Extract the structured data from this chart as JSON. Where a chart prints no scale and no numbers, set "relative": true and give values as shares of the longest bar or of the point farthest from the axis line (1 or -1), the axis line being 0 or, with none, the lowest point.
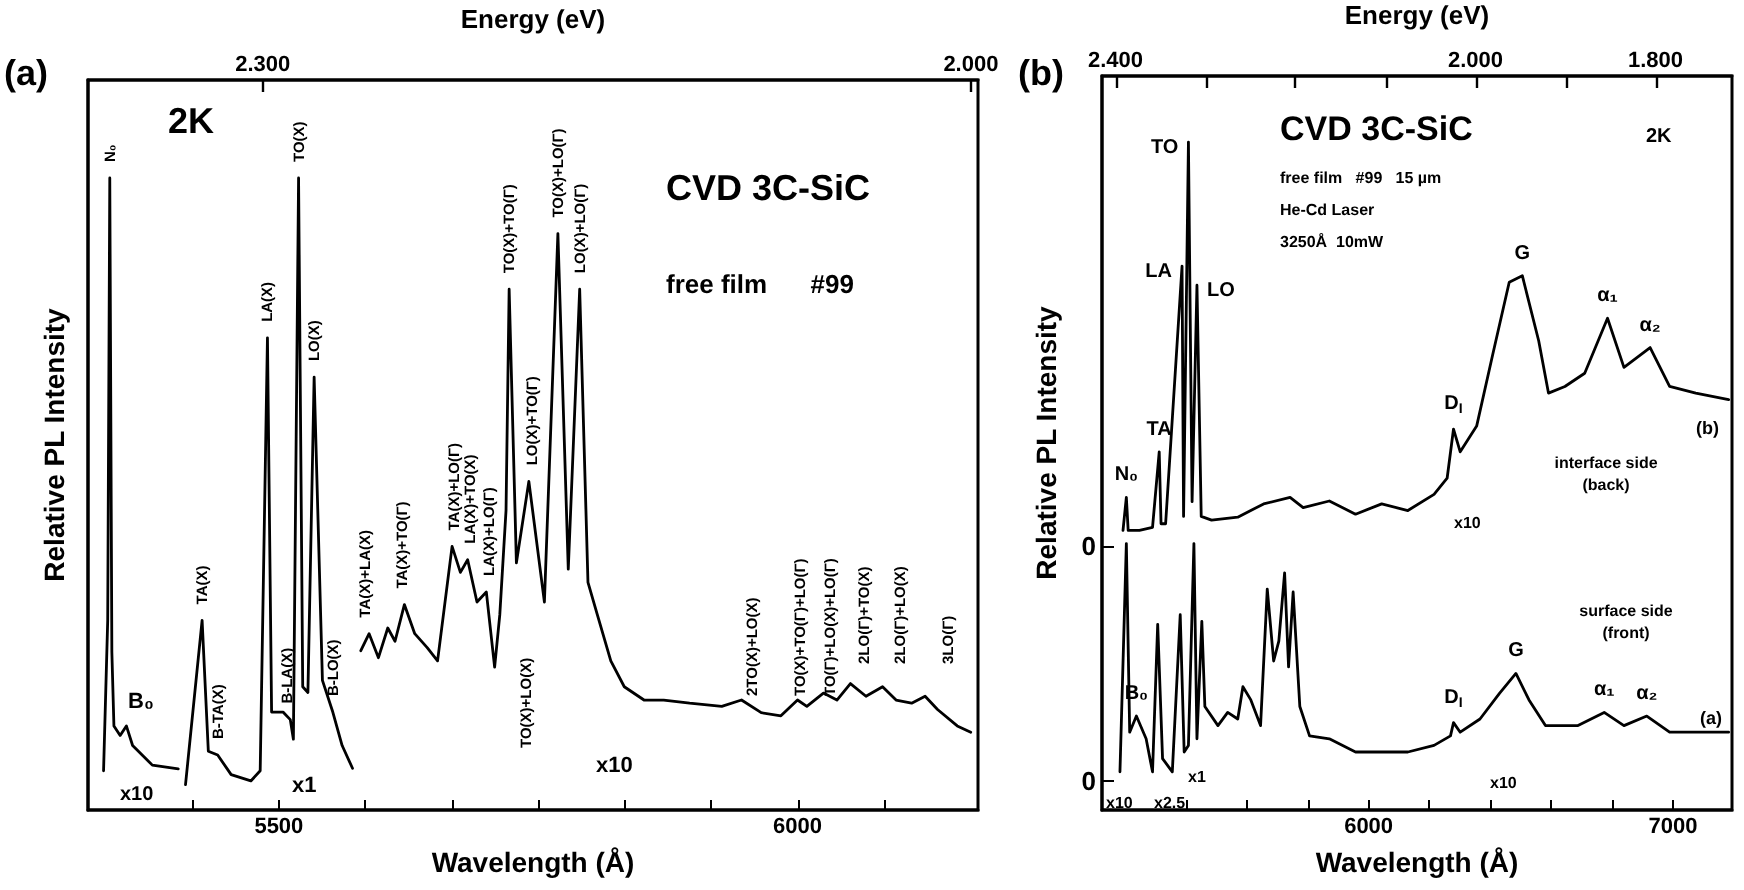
{
  "chart_data": [
    {
      "type": "line",
      "relative": true,
      "title": "CVD 3C-SiC",
      "subtitle": "free film      #99",
      "xlabel": "Wavelength (Å)",
      "x2label": "Energy (eV)",
      "ylabel": "Relative PL Intensity",
      "xlim": [
        5316,
        6174
      ],
      "xticks": [
        {
          "value": 5416.7,
          "label": null
        },
        5500,
        {
          "value": 5583.3,
          "label": null
        },
        {
          "value": 5666.7,
          "label": null
        },
        {
          "value": 5750,
          "label": null
        },
        {
          "value": 5833.3,
          "label": null
        },
        {
          "value": 5916.7,
          "label": null
        },
        6000,
        {
          "value": 6083.3,
          "label": null
        }
      ],
      "x2lim": [
        2.374,
        1.997
      ],
      "x2ticks": [
        {
          "value": 2.3,
          "label": "2.300"
        },
        {
          "value": 2.0,
          "label": "2.000"
        }
      ],
      "marker": "none",
      "line_style": "solid",
      "series": [
        {
          "color": "#000000",
          "x": [
            5331,
            5335,
            5337,
            5339,
            5341,
            5347,
            5353,
            5359,
            5378,
            5403
          ],
          "values": [
            0.062,
            0.3,
            1.0,
            0.25,
            0.133,
            0.118,
            0.133,
            0.102,
            0.071,
            0.065
          ]
        },
        {
          "color": "#000000",
          "x": [
            5410,
            5426,
            5432,
            5441,
            5454,
            5473,
            5482,
            5489,
            5493,
            5504,
            5511,
            5514,
            5519,
            5523,
            5528,
            5534,
            5542,
            5552,
            5561,
            5571
          ],
          "values": [
            0.04,
            0.3,
            0.093,
            0.087,
            0.056,
            0.046,
            0.062,
            0.747,
            0.155,
            0.155,
            0.143,
            0.112,
            1.0,
            0.195,
            0.186,
            0.685,
            0.205,
            0.155,
            0.102,
            0.066
          ]
        },
        {
          "color": "#000000",
          "x": [
            5579,
            5587,
            5596,
            5605,
            5612,
            5621,
            5631,
            5643,
            5653,
            5667,
            5675,
            5682,
            5691,
            5700,
            5708,
            5713,
            5719,
            5722,
            5729,
            5741,
            5756,
            5769,
            5779,
            5790,
            5798,
            5807,
            5820,
            5833,
            5852,
            5871,
            5896,
            5927,
            5946,
            5965,
            5984,
            6000,
            6009,
            6025,
            6038,
            6051,
            6066,
            6082,
            6095,
            6110,
            6123,
            6135,
            6154,
            6167
          ],
          "values": [
            0.252,
            0.279,
            0.241,
            0.288,
            0.267,
            0.325,
            0.279,
            0.257,
            0.236,
            0.417,
            0.376,
            0.396,
            0.329,
            0.345,
            0.226,
            0.309,
            0.474,
            0.824,
            0.391,
            0.52,
            0.329,
            0.912,
            0.381,
            0.824,
            0.36,
            0.309,
            0.236,
            0.195,
            0.174,
            0.174,
            0.169,
            0.164,
            0.174,
            0.154,
            0.149,
            0.174,
            0.164,
            0.185,
            0.174,
            0.2,
            0.18,
            0.195,
            0.174,
            0.169,
            0.18,
            0.159,
            0.133,
            0.123
          ]
        }
      ],
      "annotations": [
        "(a)",
        "2K",
        "x10",
        "B₀",
        "x1",
        "x10",
        "TO(X)+LO(X)",
        "2TO(X)+LO(X)",
        "TO(X)+TO(Γ)+LO(Γ)",
        "TO(Γ)+LO(X)+LO(Γ)",
        "2LO(Γ)+TO(X)",
        "2LO(Γ)+LO(X)",
        "3LO(Γ)",
        {
          "text": "N₀",
          "x": 5337,
          "y": 1.0
        },
        {
          "text": "TA(X)",
          "x": 5426,
          "y": 0.3
        },
        {
          "text": "B-TA(X)",
          "x": 5441,
          "y": 0.087
        },
        {
          "text": "LA(X)",
          "x": 5489,
          "y": 0.747
        },
        {
          "text": "TO(X)",
          "x": 5519,
          "y": 1.0
        },
        {
          "text": "LO(X)",
          "x": 5534,
          "y": 0.685
        },
        {
          "text": "B-LA(X)",
          "x": 5508,
          "y": 0.143
        },
        {
          "text": "B-LO(X)",
          "x": 5552,
          "y": 0.155
        },
        {
          "text": "TA(X)+LA(X)",
          "x": 5583,
          "y": 0.279
        },
        {
          "text": "TA(X)+TO(Γ)",
          "x": 5619,
          "y": 0.325
        },
        {
          "text": "TA(X)+LO(Γ)",
          "x": 5669,
          "y": 0.417
        },
        {
          "text": "LA(X)+TO(X)",
          "x": 5684,
          "y": 0.396
        },
        {
          "text": "LA(X)+LO(Γ)",
          "x": 5703,
          "y": 0.345
        },
        {
          "text": "TO(X)+TO(Γ)",
          "x": 5722,
          "y": 0.824
        },
        {
          "text": "LO(X)+TO(Γ)",
          "x": 5744,
          "y": 0.52
        },
        {
          "text": "TO(X)+LO(Γ)",
          "x": 5769,
          "y": 0.912
        },
        {
          "text": "LO(X)+LO(Γ)",
          "x": 5790,
          "y": 0.824
        }
      ]
    },
    {
      "type": "line",
      "title": "CVD 3C-SiC",
      "subtitle": "free film   #99   15 µm\nHe-Cd Laser\n3250Å  10mW",
      "xlabel": "Wavelength (Å)",
      "x2label": "Energy (eV)",
      "ylabel": "Relative PL Intensity",
      "xlim": [
        5124,
        7194
      ],
      "xticks": [
        {
          "value": 5400,
          "label": null
        },
        {
          "value": 5600,
          "label": null
        },
        {
          "value": 5800,
          "label": null
        },
        6000,
        {
          "value": 6200,
          "label": null
        },
        {
          "value": 6400,
          "label": null
        },
        {
          "value": 6600,
          "label": null
        },
        {
          "value": 6800,
          "label": null
        },
        7000
      ],
      "x2lim": [
        2.415,
        1.715
      ],
      "x2ticks": [
        {
          "value": 2.4,
          "label": "2.400"
        },
        {
          "value": 2.3,
          "label": null
        },
        {
          "value": 2.2,
          "label": null
        },
        {
          "value": 2.1,
          "label": null
        },
        {
          "value": 2.0,
          "label": "2.000"
        },
        {
          "value": 1.9,
          "label": null
        },
        {
          "value": 1.8,
          "label": "1.800"
        }
      ],
      "ylim": [
        0,
        1
      ],
      "yticks": [
        {
          "value": 0.04,
          "label": "0"
        },
        {
          "value": 0.36,
          "label": "0"
        }
      ],
      "marker": "none",
      "line_style": "solid",
      "series": [
        {
          "color": "#000000",
          "x": [
            5193,
            5204,
            5210,
            5247,
            5290,
            5312,
            5318,
            5333,
            5387,
            5392,
            5408,
            5420,
            5436,
            5450,
            5484,
            5570,
            5655,
            5742,
            5785,
            5871,
            5957,
            6043,
            6129,
            6215,
            6258,
            6279,
            6301,
            6355,
            6408,
            6462,
            6505,
            6559,
            6591,
            6645,
            6710,
            6785,
            6839,
            6925,
            6989,
            7075,
            7183
          ],
          "values": [
            0.381,
            0.426,
            0.381,
            0.381,
            0.385,
            0.488,
            0.39,
            0.39,
            0.741,
            0.4,
            0.91,
            0.42,
            0.715,
            0.4,
            0.395,
            0.399,
            0.417,
            0.426,
            0.412,
            0.421,
            0.403,
            0.417,
            0.408,
            0.43,
            0.452,
            0.519,
            0.488,
            0.523,
            0.621,
            0.719,
            0.728,
            0.639,
            0.568,
            0.577,
            0.595,
            0.67,
            0.603,
            0.63,
            0.577,
            0.568,
            0.559
          ]
        },
        {
          "color": "#000000",
          "x": [
            5183,
            5204,
            5215,
            5237,
            5269,
            5290,
            5307,
            5323,
            5355,
            5381,
            5394,
            5408,
            5426,
            5436,
            5452,
            5462,
            5505,
            5537,
            5570,
            5587,
            5613,
            5645,
            5667,
            5688,
            5705,
            5724,
            5737,
            5752,
            5774,
            5806,
            5871,
            5957,
            6043,
            6129,
            6215,
            6269,
            6279,
            6301,
            6366,
            6430,
            6484,
            6527,
            6581,
            6688,
            6774,
            6839,
            6914,
            6989,
            7183
          ],
          "values": [
            0.052,
            0.363,
            0.106,
            0.128,
            0.097,
            0.052,
            0.253,
            0.07,
            0.052,
            0.266,
            0.079,
            0.088,
            0.363,
            0.097,
            0.257,
            0.141,
            0.115,
            0.133,
            0.124,
            0.168,
            0.15,
            0.115,
            0.301,
            0.203,
            0.23,
            0.323,
            0.195,
            0.297,
            0.141,
            0.101,
            0.097,
            0.079,
            0.079,
            0.079,
            0.088,
            0.101,
            0.119,
            0.106,
            0.124,
            0.159,
            0.186,
            0.15,
            0.115,
            0.115,
            0.133,
            0.115,
            0.128,
            0.106,
            0.106
          ]
        }
      ],
      "annotations": [
        "(b)",
        "2K",
        "interface side\n(back)",
        "(b)",
        "x10",
        "surface side\n(front)",
        "(a)",
        "x10",
        "x10",
        "x2.5",
        "x1",
        {
          "text": "TO",
          "x": 5408,
          "y": 0.91
        },
        {
          "text": "LA",
          "x": 5387,
          "y": 0.741
        },
        {
          "text": "LO",
          "x": 5436,
          "y": 0.715
        },
        {
          "text": "TA",
          "x": 5312,
          "y": 0.488
        },
        {
          "text": "N₀",
          "x": 5204,
          "y": 0.426
        },
        {
          "text": "D$_{I}$",
          "x": 6279,
          "y": 0.519
        },
        {
          "text": "G",
          "x": 6505,
          "y": 0.728
        },
        {
          "text": "α₁",
          "x": 6785,
          "y": 0.67
        },
        {
          "text": "α₂",
          "x": 6925,
          "y": 0.63
        },
        {
          "text": "B₀",
          "x": 5237,
          "y": 0.128
        },
        {
          "text": "D$_{I}$",
          "x": 6279,
          "y": 0.119
        },
        {
          "text": "G",
          "x": 6484,
          "y": 0.186
        },
        {
          "text": "α₁",
          "x": 6774,
          "y": 0.133
        },
        {
          "text": "α₂",
          "x": 6914,
          "y": 0.128
        }
      ]
    }
  ]
}
